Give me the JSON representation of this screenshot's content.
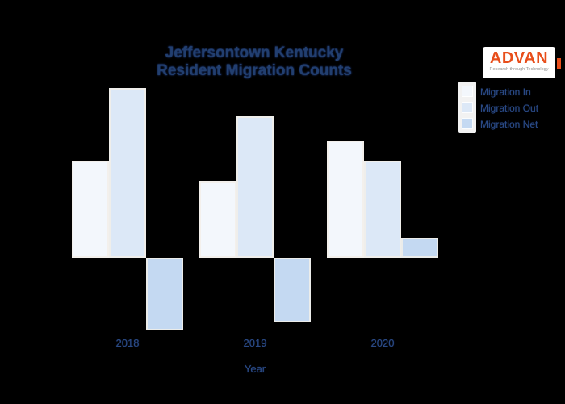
{
  "header": {
    "title_line1": "Jeffersontown Kentucky",
    "title_line2": "Resident Migration Counts"
  },
  "brand": {
    "name": "ADVAN",
    "tagline": "Research through Technology",
    "accent_color": "#e84e1b"
  },
  "colors": {
    "background": "#000000",
    "title_text": "#223f6f",
    "axis_text": "#2a4a85",
    "bar_border": "#f2eee9"
  },
  "chart_data": {
    "type": "bar",
    "title": "Jeffersontown Kentucky Resident Migration Counts",
    "categories": [
      "2018",
      "2019",
      "2020"
    ],
    "series": [
      {
        "name": "Migration In",
        "color": "#f3f7fc",
        "values": [
          1200,
          950,
          1450
        ]
      },
      {
        "name": "Migration Out",
        "color": "#dce8f7",
        "values": [
          2100,
          1750,
          1200
        ]
      },
      {
        "name": "Migration Net",
        "color": "#c4d9f2",
        "values": [
          -900,
          -800,
          250
        ]
      }
    ],
    "xlabel": "Year",
    "ylabel": "",
    "ylim": [
      -1000,
      2300
    ],
    "grid": false,
    "legend_position": "top-right",
    "y_axis_visible": false
  }
}
